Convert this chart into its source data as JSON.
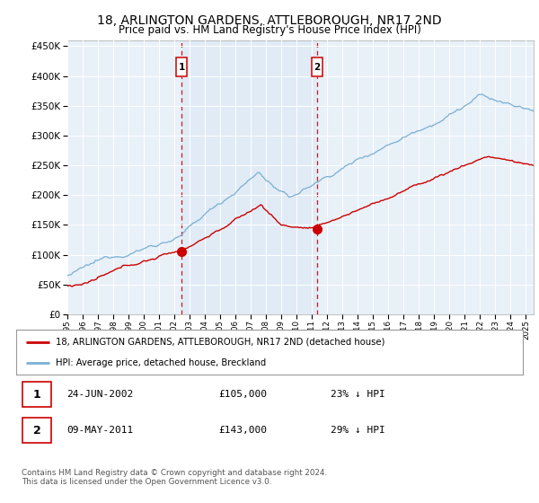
{
  "title": "18, ARLINGTON GARDENS, ATTLEBOROUGH, NR17 2ND",
  "subtitle": "Price paid vs. HM Land Registry's House Price Index (HPI)",
  "legend_line1": "18, ARLINGTON GARDENS, ATTLEBOROUGH, NR17 2ND (detached house)",
  "legend_line2": "HPI: Average price, detached house, Breckland",
  "footnote": "Contains HM Land Registry data © Crown copyright and database right 2024.\nThis data is licensed under the Open Government Licence v3.0.",
  "transactions": [
    {
      "label": "1",
      "date": "24-JUN-2002",
      "price": 105000,
      "hpi_pct": "23% ↓ HPI",
      "year": 2002.47
    },
    {
      "label": "2",
      "date": "09-MAY-2011",
      "price": 143000,
      "hpi_pct": "29% ↓ HPI",
      "year": 2011.35
    }
  ],
  "hpi_color": "#7aafd4",
  "price_color": "#cc0000",
  "marker_box_color": "#cc0000",
  "bg_color": "#dce8f5",
  "chart_bg": "#e8f0f8",
  "ylim": [
    0,
    460000
  ],
  "xlim_start": 1995.0,
  "xlim_end": 2025.5
}
